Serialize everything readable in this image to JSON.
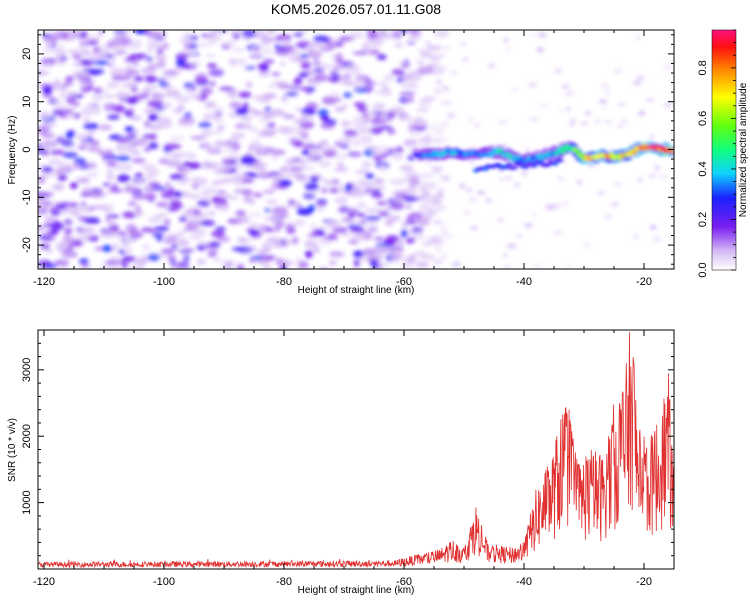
{
  "chart_data": [
    {
      "type": "heatmap",
      "title": "KOM5.2026.057.01.11.G08",
      "xlabel": "Height of straight line (km)",
      "ylabel": "Frequency (Hz)",
      "xlim": [
        -121,
        -15
      ],
      "ylim": [
        -25,
        25
      ],
      "x_ticks": [
        "-120",
        "-100",
        "-80",
        "-60",
        "-40",
        "-20"
      ],
      "y_ticks": [
        "20",
        "10",
        "0",
        "-10",
        "-20"
      ],
      "colorbar": {
        "label": "Normalized spectral amplitude",
        "range": [
          0,
          0.95
        ],
        "ticks": [
          "0.0",
          "0.2",
          "0.4",
          "0.6",
          "0.8"
        ]
      },
      "description_points": {
        "noise_region_x": [
          -121,
          -60
        ],
        "noise_amplitude": 0.15,
        "signal_start_x": -60,
        "signal_ridge": [
          {
            "x": -58,
            "y": -1,
            "z": 0.3
          },
          {
            "x": -55,
            "y": -1,
            "z": 0.42
          },
          {
            "x": -52,
            "y": -0.5,
            "z": 0.4
          },
          {
            "x": -48,
            "y": -1,
            "z": 0.35
          },
          {
            "x": -44,
            "y": -0.5,
            "z": 0.45
          },
          {
            "x": -40,
            "y": -2.5,
            "z": 0.4
          },
          {
            "x": -36,
            "y": -1,
            "z": 0.4
          },
          {
            "x": -32,
            "y": 0.5,
            "z": 0.55
          },
          {
            "x": -30,
            "y": -2,
            "z": 0.8
          },
          {
            "x": -27,
            "y": -1.5,
            "z": 0.85
          },
          {
            "x": -24,
            "y": -1.5,
            "z": 0.75
          },
          {
            "x": -20,
            "y": 0.5,
            "z": 0.9
          },
          {
            "x": -16,
            "y": 0,
            "z": 0.95
          }
        ]
      }
    },
    {
      "type": "line",
      "title": "",
      "xlabel": "Height of straight line (km)",
      "ylabel": "SNR (10 * v/v)",
      "xlim": [
        -121,
        -15
      ],
      "ylim": [
        0,
        3600
      ],
      "x_ticks": [
        "-120",
        "-100",
        "-80",
        "-60",
        "-40",
        "-20"
      ],
      "y_ticks": [
        "1000",
        "2000",
        "3000"
      ],
      "series_color": "#e03030",
      "envelope": [
        {
          "x": -121,
          "y": 90
        },
        {
          "x": -100,
          "y": 95
        },
        {
          "x": -80,
          "y": 100
        },
        {
          "x": -62,
          "y": 110
        },
        {
          "x": -58,
          "y": 200
        },
        {
          "x": -54,
          "y": 280
        },
        {
          "x": -52,
          "y": 420
        },
        {
          "x": -50,
          "y": 300
        },
        {
          "x": -48,
          "y": 900
        },
        {
          "x": -46,
          "y": 350
        },
        {
          "x": -42,
          "y": 300
        },
        {
          "x": -40,
          "y": 400
        },
        {
          "x": -38,
          "y": 1100
        },
        {
          "x": -35,
          "y": 1700
        },
        {
          "x": -33,
          "y": 2500
        },
        {
          "x": -31,
          "y": 1500
        },
        {
          "x": -29,
          "y": 1700
        },
        {
          "x": -27,
          "y": 1600
        },
        {
          "x": -25,
          "y": 2300
        },
        {
          "x": -23,
          "y": 2800
        },
        {
          "x": -22,
          "y": 3600
        },
        {
          "x": -21,
          "y": 2100
        },
        {
          "x": -19,
          "y": 1800
        },
        {
          "x": -17,
          "y": 2300
        },
        {
          "x": -16,
          "y": 2800
        },
        {
          "x": -15,
          "y": 1500
        }
      ]
    }
  ]
}
